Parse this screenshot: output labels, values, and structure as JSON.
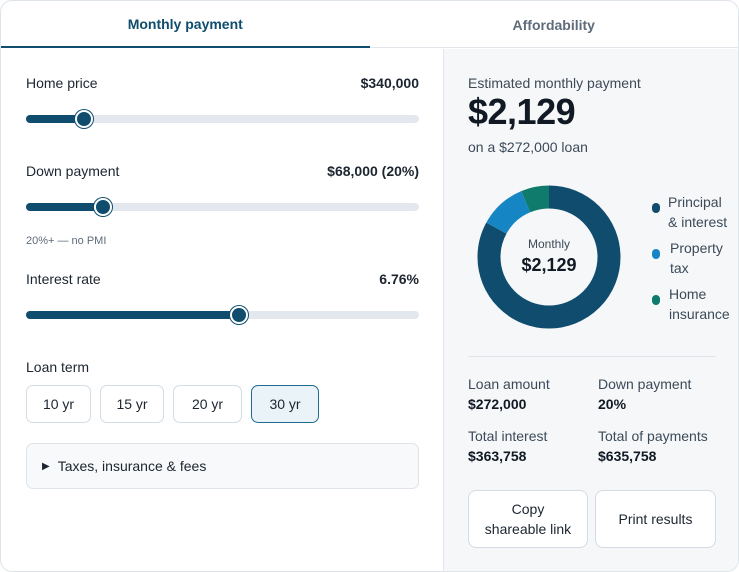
{
  "tabs": [
    {
      "label": "Monthly payment",
      "active": true
    },
    {
      "label": "Affordability",
      "active": false
    }
  ],
  "inputs": {
    "home_price": {
      "label": "Home price",
      "value": "$340,000",
      "slider_fraction": 0.148
    },
    "down_payment": {
      "label": "Down payment",
      "value": "$68,000 (20%)",
      "slider_fraction": 0.196,
      "hint": "20%+ — no PMI"
    },
    "interest_rate": {
      "label": "Interest rate",
      "value": "6.76%",
      "slider_fraction": 0.543
    }
  },
  "loan_term": {
    "label": "Loan term",
    "options": [
      "10 yr",
      "15 yr",
      "20 yr",
      "30 yr"
    ],
    "selected": "30 yr"
  },
  "expander": {
    "label": "Taxes, insurance & fees",
    "expanded": false
  },
  "summary": {
    "estimate_label": "Estimated monthly payment",
    "estimate_value": "$2,129",
    "loan_note": "on a $272,000 loan",
    "donut_center_label": "Monthly",
    "donut_center_value": "$2,129"
  },
  "chart_data": {
    "type": "pie",
    "style": "donut",
    "categories": [
      "Principal & interest",
      "Property tax",
      "Home insurance"
    ],
    "values": [
      1766,
      227,
      136
    ],
    "colors": [
      "#0f4c6e",
      "#1685c4",
      "#0e7b6c"
    ]
  },
  "legend": [
    {
      "line1": "Principal",
      "line2": "& interest",
      "color": "#0f4c6e"
    },
    {
      "line1": "Property",
      "line2": "tax",
      "color": "#1685c4"
    },
    {
      "line1": "Home",
      "line2": "insurance",
      "color": "#0e7b6c"
    }
  ],
  "stats": {
    "loan_amount": {
      "label": "Loan amount",
      "value": "$272,000"
    },
    "down_payment": {
      "label": "Down payment",
      "value": "20%"
    },
    "total_interest": {
      "label": "Total interest",
      "value": "$363,758"
    },
    "total_payments": {
      "label": "Total of payments",
      "value": "$635,758"
    }
  },
  "buttons": {
    "copy_link_line1": "Copy",
    "copy_link_line2": "shareable link",
    "print": "Print results"
  },
  "colors": {
    "accent": "#0f4c6e",
    "selected_term_bg": "#eaf3f8",
    "track": "#e3e8ee"
  }
}
